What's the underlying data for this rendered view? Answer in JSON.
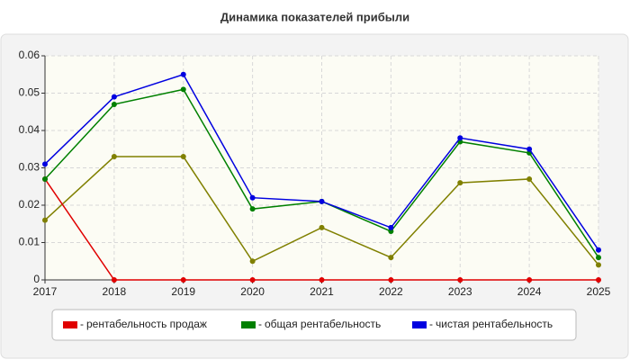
{
  "chart_data": {
    "type": "line",
    "title": "Динамика показателей прибыли",
    "categories": [
      "2017",
      "2018",
      "2019",
      "2020",
      "2021",
      "2022",
      "2023",
      "2024",
      "2025"
    ],
    "series": [
      {
        "name": "рентабельность продаж",
        "color": "#e00000",
        "values": [
          0.027,
          0,
          0,
          0,
          0,
          0,
          0,
          0,
          0
        ]
      },
      {
        "name": "общая рентабельность",
        "color": "#008000",
        "values": [
          0.027,
          0.047,
          0.051,
          0.019,
          0.021,
          0.013,
          0.037,
          0.034,
          0.006
        ]
      },
      {
        "name": "чистая рентабельность",
        "color": "#0000e0",
        "values": [
          0.031,
          0.049,
          0.055,
          0.022,
          0.021,
          0.014,
          0.038,
          0.035,
          0.008
        ]
      },
      {
        "color": "#808000",
        "values": [
          0.016,
          0.033,
          0.033,
          0.005,
          0.014,
          0.006,
          0.026,
          0.027,
          0.004
        ]
      }
    ],
    "ylim": [
      0,
      0.06
    ],
    "yticks": [
      0,
      0.01,
      0.02,
      0.03,
      0.04,
      0.05,
      0.06
    ],
    "grid": true,
    "legend": "bottom"
  }
}
